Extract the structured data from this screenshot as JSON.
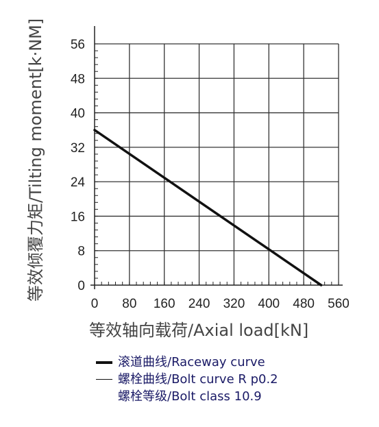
{
  "chart_data": {
    "type": "line",
    "xlabel": "等效轴向载荷/Axial load[kN]",
    "ylabel": "等效倾覆力矩/Tilting moment[k·NM]",
    "x_ticks": [
      "0",
      "80",
      "160",
      "240",
      "320",
      "400",
      "480",
      "560"
    ],
    "y_ticks": [
      "0",
      "8",
      "16",
      "24",
      "32",
      "40",
      "48",
      "56"
    ],
    "xlim": [
      0,
      560
    ],
    "ylim": [
      0,
      56
    ],
    "grid": true,
    "legend_position": "bottom",
    "series": [
      {
        "name": "滚道曲线/Raceway curve",
        "x": [
          0,
          520
        ],
        "y": [
          36,
          0
        ],
        "color": "#111111"
      }
    ],
    "legend": [
      {
        "label": "滚道曲线/Raceway curve",
        "swatch": "thick"
      },
      {
        "label": "螺栓曲线/Bolt curve R p0.2",
        "swatch": "thin"
      },
      {
        "label": "螺栓等级/Bolt class 10.9",
        "swatch": "none"
      }
    ]
  }
}
